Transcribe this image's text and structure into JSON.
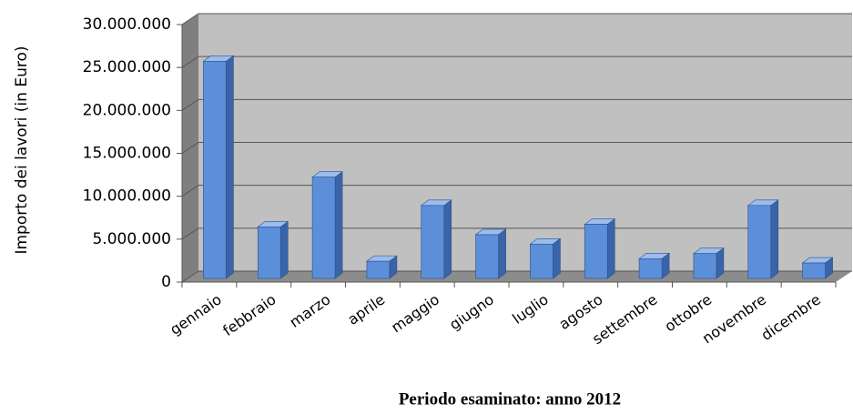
{
  "chart_data": {
    "type": "bar",
    "x_label": "Periodo esaminato: anno 2012",
    "y_label": "Importo dei lavori (in Euro)",
    "categories": [
      "gennaio",
      "febbraio",
      "marzo",
      "aprile",
      "maggio",
      "giugno",
      "luglio",
      "agosto",
      "settembre",
      "ottobre",
      "novembre",
      "dicembre"
    ],
    "values": [
      25300000,
      6000000,
      11800000,
      2000000,
      8500000,
      5100000,
      4000000,
      6300000,
      2300000,
      2900000,
      8500000,
      1800000
    ],
    "color": "#5b8fd9",
    "ylim": [
      0,
      30000000
    ],
    "yticks": [
      0,
      {
        "value": 5000000,
        "label": "5.000.000"
      },
      {
        "value": 10000000,
        "label": "10.000.000"
      },
      {
        "value": 15000000,
        "label": "15.000.000"
      },
      {
        "value": 20000000,
        "label": "20.000.000"
      },
      {
        "value": 25000000,
        "label": "25.000.000"
      },
      {
        "value": 30000000,
        "label": "30.000.000"
      }
    ],
    "grid": true
  }
}
